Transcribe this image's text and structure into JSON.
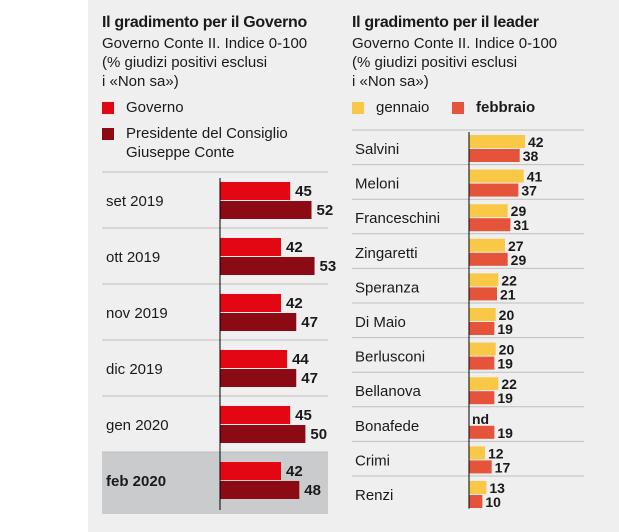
{
  "colors": {
    "background": "#efefef",
    "governo": "#e30613",
    "premier": "#8c0a14",
    "gennaio": "#f9c846",
    "febbraio": "#e4533a",
    "highlight": "#c9cbcd",
    "grid": "#bfbfbf"
  },
  "left": {
    "title": "Il gradimento per il Governo",
    "subtitle_lines": [
      "Governo Conte II. Indice 0-100",
      "(% giudizi positivi esclusi",
      "i «Non sa»)"
    ],
    "legend": [
      {
        "label": "Governo",
        "color": "#e30613"
      },
      {
        "label": "Presidente del Consiglio Giuseppe Conte",
        "color": "#8c0a14"
      }
    ]
  },
  "right": {
    "title": "Il gradimento per il leader",
    "subtitle_lines": [
      "Governo Conte II. Indice 0-100",
      "(% giudizi positivi esclusi",
      "i «Non sa»)"
    ],
    "legend": [
      {
        "label": "gennaio",
        "color": "#f9c846"
      },
      {
        "label": "febbraio",
        "color": "#e4533a"
      }
    ]
  },
  "chart_data": [
    {
      "type": "bar",
      "orientation": "horizontal",
      "title": "Il gradimento per il Governo",
      "subtitle": "Governo Conte II. Indice 0-100 (% giudizi positivi esclusi i «Non sa»)",
      "categories": [
        "set 2019",
        "ott 2019",
        "nov 2019",
        "dic 2019",
        "gen 2020",
        "feb 2020"
      ],
      "highlight_category": "feb 2020",
      "series": [
        {
          "name": "Governo",
          "values": [
            45,
            42,
            42,
            44,
            45,
            42
          ]
        },
        {
          "name": "Presidente del Consiglio Giuseppe Conte",
          "values": [
            52,
            53,
            47,
            47,
            50,
            48
          ]
        }
      ],
      "xlim": [
        0,
        100
      ],
      "grid": false,
      "legend": "top-left"
    },
    {
      "type": "bar",
      "orientation": "horizontal",
      "title": "Il gradimento per il leader",
      "subtitle": "Governo Conte II. Indice 0-100 (% giudizi positivi esclusi i «Non sa»)",
      "categories": [
        "Salvini",
        "Meloni",
        "Franceschini",
        "Zingaretti",
        "Speranza",
        "Di Maio",
        "Berlusconi",
        "Bellanova",
        "Bonafede",
        "Crimi",
        "Renzi"
      ],
      "series": [
        {
          "name": "gennaio",
          "values": [
            42,
            41,
            29,
            27,
            22,
            20,
            20,
            22,
            null,
            12,
            13
          ],
          "missing_label": "nd"
        },
        {
          "name": "febbraio",
          "values": [
            38,
            37,
            31,
            29,
            21,
            19,
            19,
            19,
            19,
            17,
            10
          ]
        }
      ],
      "xlim": [
        0,
        100
      ],
      "grid": false,
      "legend": "top-left"
    }
  ]
}
